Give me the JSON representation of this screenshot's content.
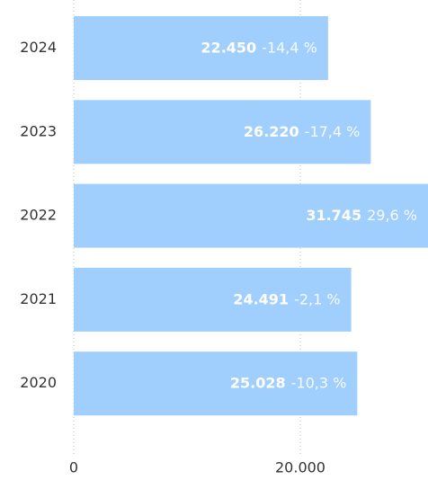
{
  "chart_data": {
    "type": "bar",
    "orientation": "horizontal",
    "categories": [
      "2024",
      "2023",
      "2022",
      "2021",
      "2020"
    ],
    "values": [
      22450,
      26220,
      31745,
      24491,
      25028
    ],
    "value_labels": [
      "22.450",
      "26.220",
      "31.745",
      "24.491",
      "25.028"
    ],
    "change_values": [
      -14.4,
      -17.4,
      29.6,
      -2.1,
      -10.3
    ],
    "change_labels": [
      "-14,4 %",
      "-17,4 %",
      "29,6 %",
      "-2,1 %",
      "-10,3 %"
    ],
    "color": "#a0cffd",
    "xlim": [
      0,
      31270
    ],
    "xticks": [
      0,
      {
        "value": 20000,
        "label": "20.000"
      }
    ],
    "grid": true
  }
}
